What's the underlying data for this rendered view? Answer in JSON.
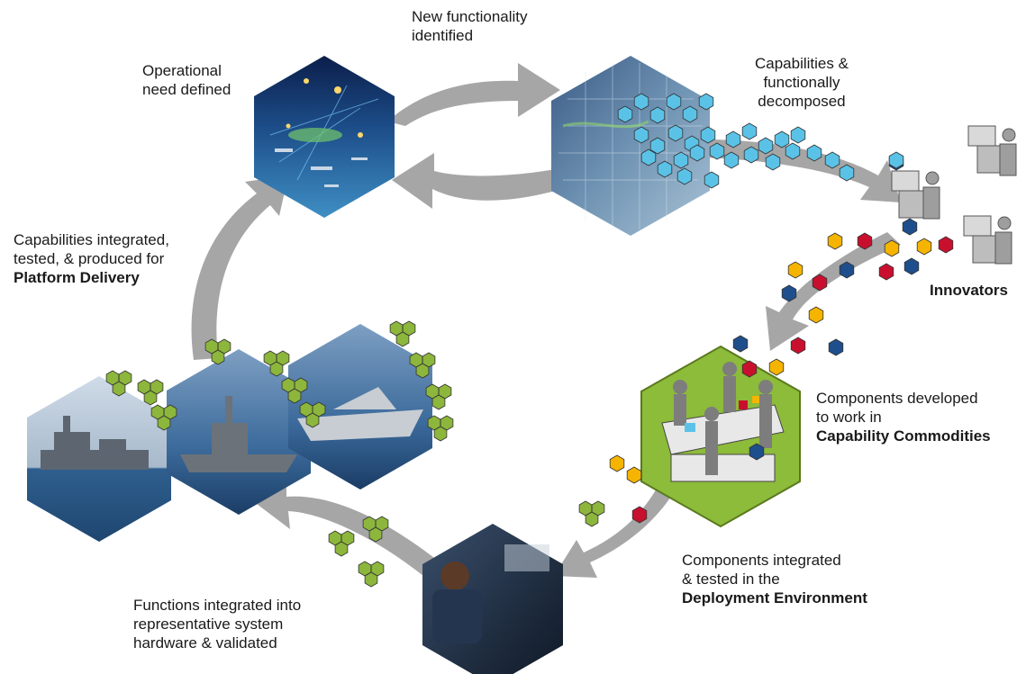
{
  "diagram": {
    "labels": {
      "operational_need": [
        "Operational",
        "need defined"
      ],
      "new_functionality": [
        "New functionality",
        "identified"
      ],
      "capabilities_decomposed": [
        "Capabilities &",
        "functionally",
        "decomposed"
      ],
      "innovators": "Innovators",
      "components_developed": [
        "Components developed",
        "to work in"
      ],
      "components_developed_bold": "Capability Commodities",
      "components_integrated": [
        "Components integrated",
        "& tested in the"
      ],
      "components_integrated_bold": "Deployment Environment",
      "functions_integrated": [
        "Functions integrated into",
        "representative system",
        "hardware & validated"
      ],
      "capabilities_integrated": [
        "Capabilities integrated,",
        "tested, & produced for"
      ],
      "capabilities_integrated_bold": "Platform Delivery"
    },
    "colors": {
      "arrow": "#a6a6a6",
      "cyan_hex": "#5bc2e7",
      "navy_hex": "#1f4e8c",
      "red_hex": "#c8102e",
      "yellow_hex": "#f5b400",
      "green_hex": "#8db63c",
      "green_dark": "#5a7a1e",
      "sea_blue": "#2b6aa3",
      "commodity_green": "#8dbb3a"
    },
    "images": [
      "operational-scene",
      "decomposed-map",
      "ship-1",
      "ship-2",
      "ship-3",
      "sailor-scene",
      "workbench-scene"
    ]
  }
}
